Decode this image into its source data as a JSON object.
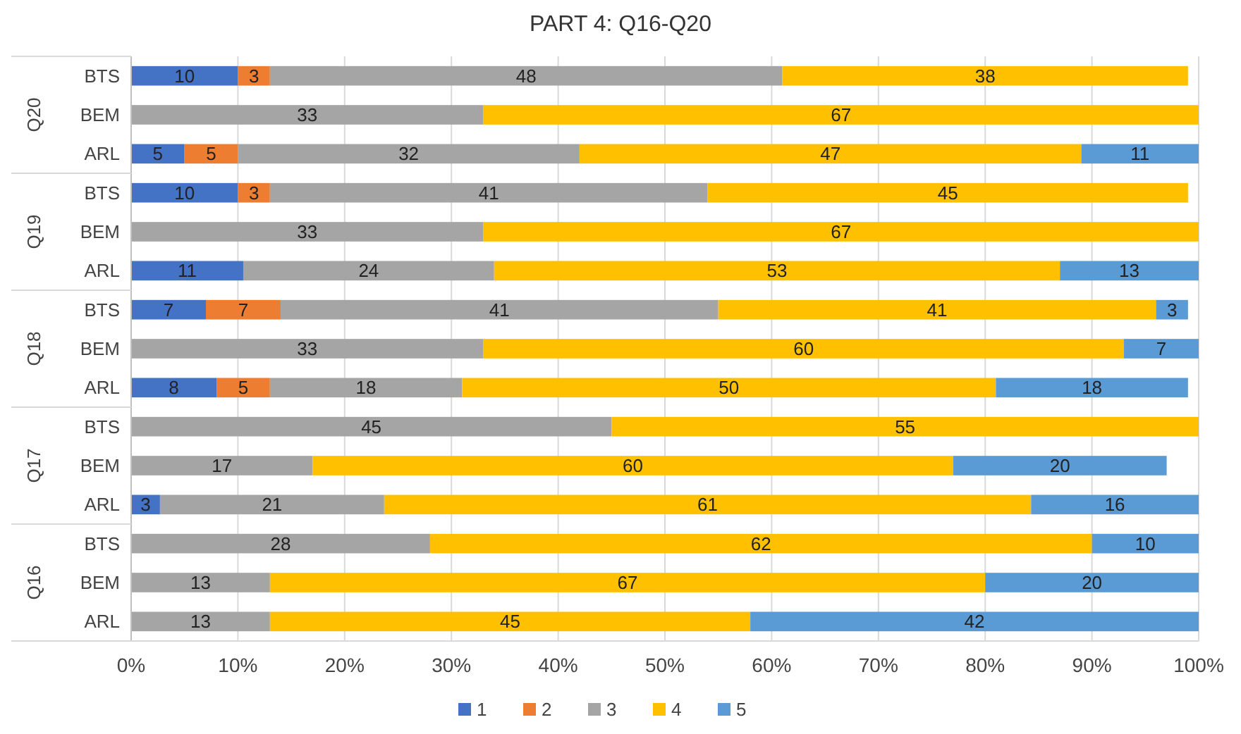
{
  "chart_data": {
    "type": "bar",
    "orientation": "horizontal",
    "stacked": true,
    "title": "PART 4: Q16-Q20",
    "categories": [
      "BTS",
      "BEM",
      "ARL",
      "BTS",
      "BEM",
      "ARL",
      "BTS",
      "BEM",
      "ARL",
      "BTS",
      "BEM",
      "ARL",
      "BTS",
      "BEM",
      "ARL"
    ],
    "annotations": [
      "Q20",
      "Q19",
      "Q18",
      "Q17",
      "Q16"
    ],
    "series": [
      {
        "name": "1",
        "color": "#4472c4",
        "values": [
          10,
          null,
          5,
          10,
          null,
          10.5,
          7,
          null,
          8,
          null,
          null,
          2.7,
          null,
          null,
          null
        ],
        "value_labels": [
          "10",
          null,
          "5",
          "10",
          null,
          "11",
          "7",
          null,
          "8",
          null,
          null,
          "3",
          null,
          null,
          null
        ]
      },
      {
        "name": "2",
        "color": "#ed7d31",
        "values": [
          3,
          null,
          5,
          3,
          null,
          null,
          7,
          null,
          5,
          null,
          null,
          null,
          null,
          null,
          null
        ],
        "value_labels": [
          "3",
          null,
          "5",
          "3",
          null,
          null,
          "7",
          null,
          "5",
          null,
          null,
          null,
          null,
          null,
          null
        ]
      },
      {
        "name": "3",
        "color": "#a5a5a5",
        "values": [
          48,
          33,
          32,
          41,
          33,
          23.5,
          41,
          33,
          18,
          45,
          17,
          21,
          28,
          13,
          13
        ],
        "value_labels": [
          "48",
          "33",
          "32",
          "41",
          "33",
          "24",
          "41",
          "33",
          "18",
          "45",
          "17",
          "21",
          "28",
          "13",
          "13"
        ]
      },
      {
        "name": "4",
        "color": "#ffc000",
        "values": [
          38,
          67,
          47,
          45,
          67,
          53,
          41,
          60,
          50,
          55,
          60,
          60.6,
          62,
          67,
          45
        ],
        "value_labels": [
          "38",
          "67",
          "47",
          "45",
          "67",
          "53",
          "41",
          "60",
          "50",
          "55",
          "60",
          "61",
          "62",
          "67",
          "45"
        ]
      },
      {
        "name": "5",
        "color": "#5b9bd5",
        "values": [
          null,
          null,
          11,
          null,
          null,
          13,
          3,
          7,
          18,
          null,
          20,
          15.7,
          10,
          20,
          42
        ],
        "value_labels": [
          null,
          null,
          "11",
          null,
          null,
          "13",
          "3",
          "7",
          "18",
          null,
          "20",
          "16",
          "10",
          "20",
          "42"
        ]
      }
    ],
    "xlim": [
      0,
      100
    ],
    "xticks": [
      {
        "value": 0,
        "label": "0%"
      },
      {
        "value": 10,
        "label": "10%"
      },
      {
        "value": 20,
        "label": "20%"
      },
      {
        "value": 30,
        "label": "30%"
      },
      {
        "value": 40,
        "label": "40%"
      },
      {
        "value": 50,
        "label": "50%"
      },
      {
        "value": 60,
        "label": "60%"
      },
      {
        "value": 70,
        "label": "70%"
      },
      {
        "value": 80,
        "label": "80%"
      },
      {
        "value": 90,
        "label": "90%"
      },
      {
        "value": 100,
        "label": "100%"
      }
    ],
    "grid": "x",
    "legend": "bottom"
  }
}
